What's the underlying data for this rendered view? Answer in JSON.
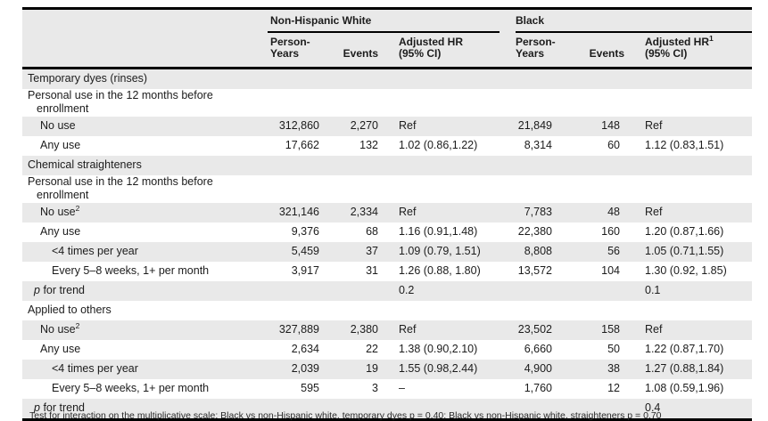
{
  "table_header": {
    "group_nhw": "Non-Hispanic White",
    "group_black": "Black",
    "nhw": {
      "person_years_l1": "Person-",
      "person_years_l2": "Years",
      "events": "Events",
      "hr_l1": "Adjusted HR",
      "hr_sup": "",
      "hr_l2": "(95% CI)"
    },
    "black": {
      "person_years_l1": "Person-",
      "person_years_l2": "Years",
      "events": "Events",
      "hr_l1": "Adjusted HR",
      "hr_sup": "1",
      "hr_l2": "(95% CI)"
    }
  },
  "rows": [
    {
      "label": "Temporary dyes (rinses)",
      "indent": "section",
      "cells": [
        "",
        "",
        "",
        "",
        "",
        ""
      ]
    },
    {
      "label": "Personal use in the 12 months before",
      "label2": "enrollment",
      "indent": "section",
      "cells": [
        "",
        "",
        "",
        "",
        "",
        ""
      ]
    },
    {
      "label": "No use",
      "indent": "l1",
      "cells": [
        "312,860",
        "2,270",
        "Ref",
        "21,849",
        "148",
        "Ref"
      ]
    },
    {
      "label": "Any use",
      "indent": "l1",
      "cells": [
        "17,662",
        "132",
        "1.02 (0.86,1.22)",
        "8,314",
        "60",
        "1.12 (0.83,1.51)"
      ]
    },
    {
      "label": "Chemical straighteners",
      "indent": "section",
      "cells": [
        "",
        "",
        "",
        "",
        "",
        ""
      ]
    },
    {
      "label": "Personal use in the 12 months before",
      "label2": "enrollment",
      "indent": "section",
      "cells": [
        "",
        "",
        "",
        "",
        "",
        ""
      ]
    },
    {
      "label": "No use",
      "sup": "2",
      "indent": "l1",
      "cells": [
        "321,146",
        "2,334",
        "Ref",
        "7,783",
        "48",
        "Ref"
      ]
    },
    {
      "label": "Any use",
      "indent": "l1",
      "cells": [
        "9,376",
        "68",
        "1.16 (0.91,1.48)",
        "22,380",
        "160",
        "1.20 (0.87,1.66)"
      ]
    },
    {
      "label": "<4 times per year",
      "indent": "l2",
      "cells": [
        "5,459",
        "37",
        "1.09 (0.79, 1.51)",
        "8,808",
        "56",
        "1.05 (0.71,1.55)"
      ]
    },
    {
      "label": "Every 5–8 weeks, 1+ per month",
      "indent": "l2",
      "cells": [
        "3,917",
        "31",
        "1.26 (0.88, 1.80)",
        "13,572",
        "104",
        "1.30 (0.92, 1.85)"
      ]
    },
    {
      "label": "for trend",
      "italic_prefix": "p",
      "indent": "ptrend",
      "cells": [
        "",
        "",
        "0.2",
        "",
        "",
        "0.1"
      ]
    },
    {
      "label": "Applied to others",
      "indent": "section",
      "cells": [
        "",
        "",
        "",
        "",
        "",
        ""
      ]
    },
    {
      "label": "No use",
      "sup": "2",
      "indent": "l1",
      "cells": [
        "327,889",
        "2,380",
        "Ref",
        "23,502",
        "158",
        "Ref"
      ]
    },
    {
      "label": "Any use",
      "indent": "l1",
      "cells": [
        "2,634",
        "22",
        "1.38 (0.90,2.10)",
        "6,660",
        "50",
        "1.22 (0.87,1.70)"
      ]
    },
    {
      "label": "<4 times per year",
      "indent": "l2",
      "cells": [
        "2,039",
        "19",
        "1.55 (0.98,2.44)",
        "4,900",
        "38",
        "1.27 (0.88,1.84)"
      ]
    },
    {
      "label": "Every 5–8 weeks, 1+ per month",
      "indent": "l2",
      "cells": [
        "595",
        "3",
        "–",
        "1,760",
        "12",
        "1.08 (0.59,1.96)"
      ]
    },
    {
      "label": "for trend",
      "italic_prefix": "p",
      "indent": "ptrend",
      "cells": [
        "",
        "",
        "",
        "",
        "",
        "0.4"
      ]
    }
  ],
  "footnote": "Test for interaction on the multiplicative scale: Black vs non-Hispanic white, temporary dyes p = 0.40; Black vs non-Hispanic white, straighteners p = 0.70",
  "colors": {
    "stripe": "#e9e9e9",
    "border": "#000000",
    "text": "#1c1c1c"
  }
}
